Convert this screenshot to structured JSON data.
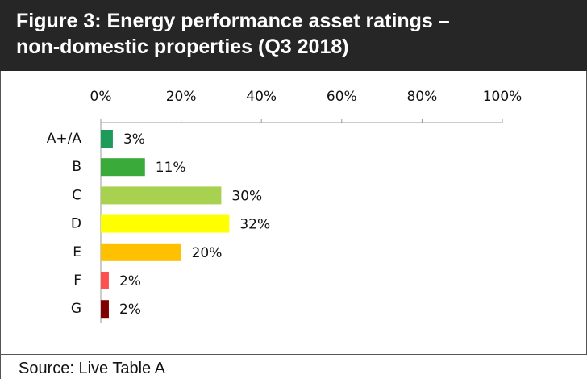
{
  "title": [
    "Figure 3: Energy performance asset ratings –",
    "non-domestic properties (Q3 2018)"
  ],
  "chart_data": {
    "type": "bar",
    "orientation": "horizontal",
    "categories": [
      "A+/A",
      "B",
      "C",
      "D",
      "E",
      "F",
      "G"
    ],
    "values": [
      3,
      11,
      30,
      32,
      20,
      2,
      2
    ],
    "value_labels": [
      "3%",
      "11%",
      "30%",
      "32%",
      "20%",
      "2%",
      "2%"
    ],
    "colors": [
      "#1e9a5a",
      "#3aaa3a",
      "#a8d14f",
      "#ffff00",
      "#ffc000",
      "#ff5050",
      "#800000"
    ],
    "xlim": [
      0,
      100
    ],
    "xticks": [
      {
        "value": 0,
        "label": "0%"
      },
      {
        "value": 20,
        "label": "20%"
      },
      {
        "value": 40,
        "label": "40%"
      },
      {
        "value": 60,
        "label": "60%"
      },
      {
        "value": 80,
        "label": "80%"
      },
      {
        "value": 100,
        "label": "100%"
      }
    ]
  },
  "source": "Source: Live Table A"
}
